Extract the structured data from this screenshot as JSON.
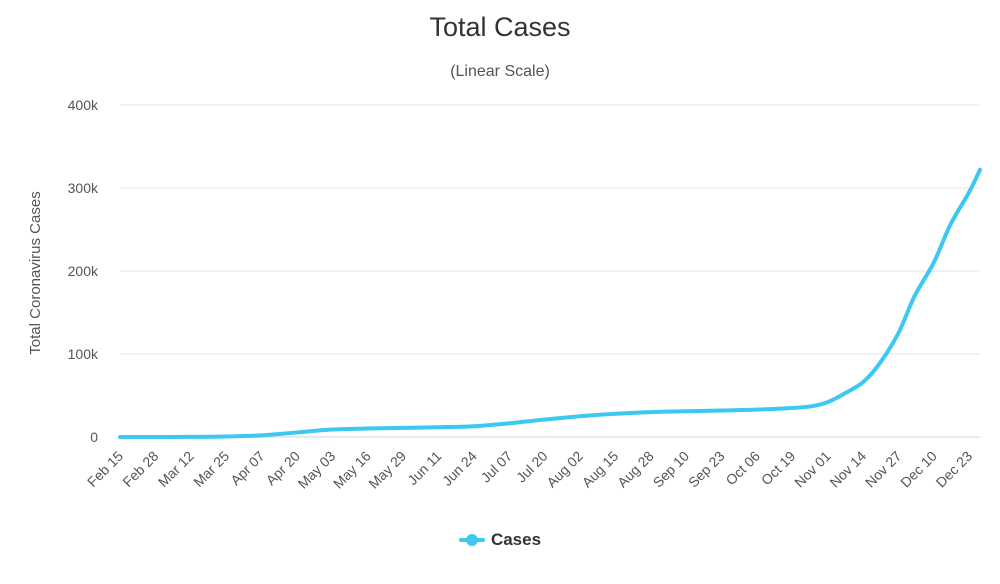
{
  "chart_data": {
    "type": "line",
    "title": "Total Cases",
    "subtitle": "(Linear Scale)",
    "ylabel": "Total Coronavirus Cases",
    "xlabel": "",
    "ylim": [
      0,
      400000
    ],
    "y_ticks": [
      0,
      100000,
      200000,
      300000,
      400000
    ],
    "y_tick_labels": [
      "0",
      "100k",
      "200k",
      "300k",
      "400k"
    ],
    "x_tick_labels": [
      "Feb 15",
      "Feb 28",
      "Mar 12",
      "Mar 25",
      "Apr 07",
      "Apr 20",
      "May 03",
      "May 16",
      "May 29",
      "Jun 11",
      "Jun 24",
      "Jul 07",
      "Jul 20",
      "Aug 02",
      "Aug 15",
      "Aug 28",
      "Sep 10",
      "Sep 23",
      "Oct 06",
      "Oct 19",
      "Nov 01",
      "Nov 14",
      "Nov 27",
      "Dec 10",
      "Dec 23"
    ],
    "grid": true,
    "legend_position": "bottom-center",
    "colors": {
      "series": "#3cc8f0",
      "grid": "#e6e6e6",
      "axis": "#ccd6eb"
    },
    "x": [
      "Feb 15",
      "Feb 28",
      "Mar 12",
      "Mar 25",
      "Apr 07",
      "Apr 20",
      "May 03",
      "May 16",
      "May 29",
      "Jun 11",
      "Jun 24",
      "Jul 07",
      "Jul 20",
      "Aug 02",
      "Aug 15",
      "Aug 28",
      "Sep 10",
      "Sep 23",
      "Oct 06",
      "Oct 19",
      "Oct 26",
      "Nov 01",
      "Nov 07",
      "Nov 14",
      "Nov 20",
      "Nov 27",
      "Dec 03",
      "Dec 10",
      "Dec 16",
      "Dec 23",
      "Dec 27"
    ],
    "series": [
      {
        "name": "Cases",
        "values": [
          0,
          0,
          100,
          600,
          2000,
          5500,
          9000,
          10200,
          11000,
          11800,
          13000,
          16500,
          21000,
          25000,
          28000,
          30000,
          31000,
          32000,
          33000,
          35000,
          37000,
          42000,
          52000,
          66000,
          88000,
          125000,
          170000,
          210000,
          255000,
          295000,
          322000
        ]
      }
    ]
  }
}
